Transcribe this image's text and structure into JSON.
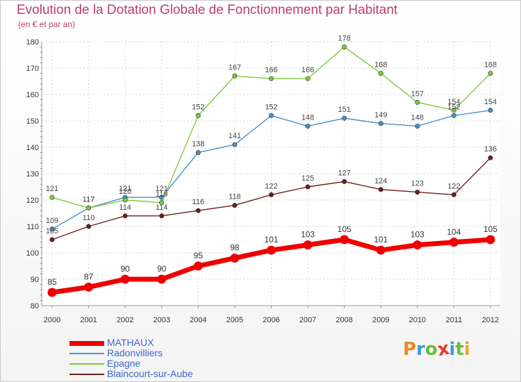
{
  "header": {
    "title": "Evolution de la Dotation Globale de Fonctionnement par Habitant",
    "subtitle": "(en € et par an)"
  },
  "logo": {
    "letters": [
      "P",
      "r",
      "o",
      "x",
      "i",
      "t",
      "i"
    ],
    "colors": [
      "#e88a2a",
      "#3c9bd8",
      "#6bbf3a",
      "#e8352a",
      "#3c9bd8",
      "#6bbf3a",
      "#e8a82a"
    ]
  },
  "chart_data": {
    "type": "line",
    "title": "Evolution de la Dotation Globale de Fonctionnement par Habitant",
    "subtitle": "(en € et par an)",
    "xlabel": "",
    "ylabel": "",
    "x": [
      "2000",
      "2001",
      "2002",
      "2003",
      "2004",
      "2005",
      "2006",
      "2007",
      "2008",
      "2009",
      "2010",
      "2011",
      "2012"
    ],
    "ylim": [
      80,
      180
    ],
    "yticks": [
      80,
      90,
      100,
      110,
      120,
      130,
      140,
      150,
      160,
      170,
      180
    ],
    "legend_position": "bottom-left",
    "series": [
      {
        "name": "MATHAUX",
        "color": "#ee0000",
        "values": [
          85,
          87,
          90,
          90,
          95,
          98,
          101,
          103,
          105,
          101,
          103,
          104,
          105
        ]
      },
      {
        "name": "Radonvilliers",
        "color": "#4a90c8",
        "values": [
          109,
          117,
          121,
          121,
          138,
          141,
          152,
          148,
          151,
          149,
          148,
          152,
          154
        ]
      },
      {
        "name": "Epagne",
        "color": "#7ccb3c",
        "values": [
          121,
          117,
          120,
          119,
          152,
          167,
          166,
          166,
          178,
          168,
          157,
          154,
          168
        ]
      },
      {
        "name": "Blaincourt-sur-Aube",
        "color": "#6b1e1e",
        "values": [
          105,
          110,
          114,
          114,
          116,
          118,
          122,
          125,
          127,
          124,
          123,
          122,
          136
        ]
      }
    ]
  }
}
